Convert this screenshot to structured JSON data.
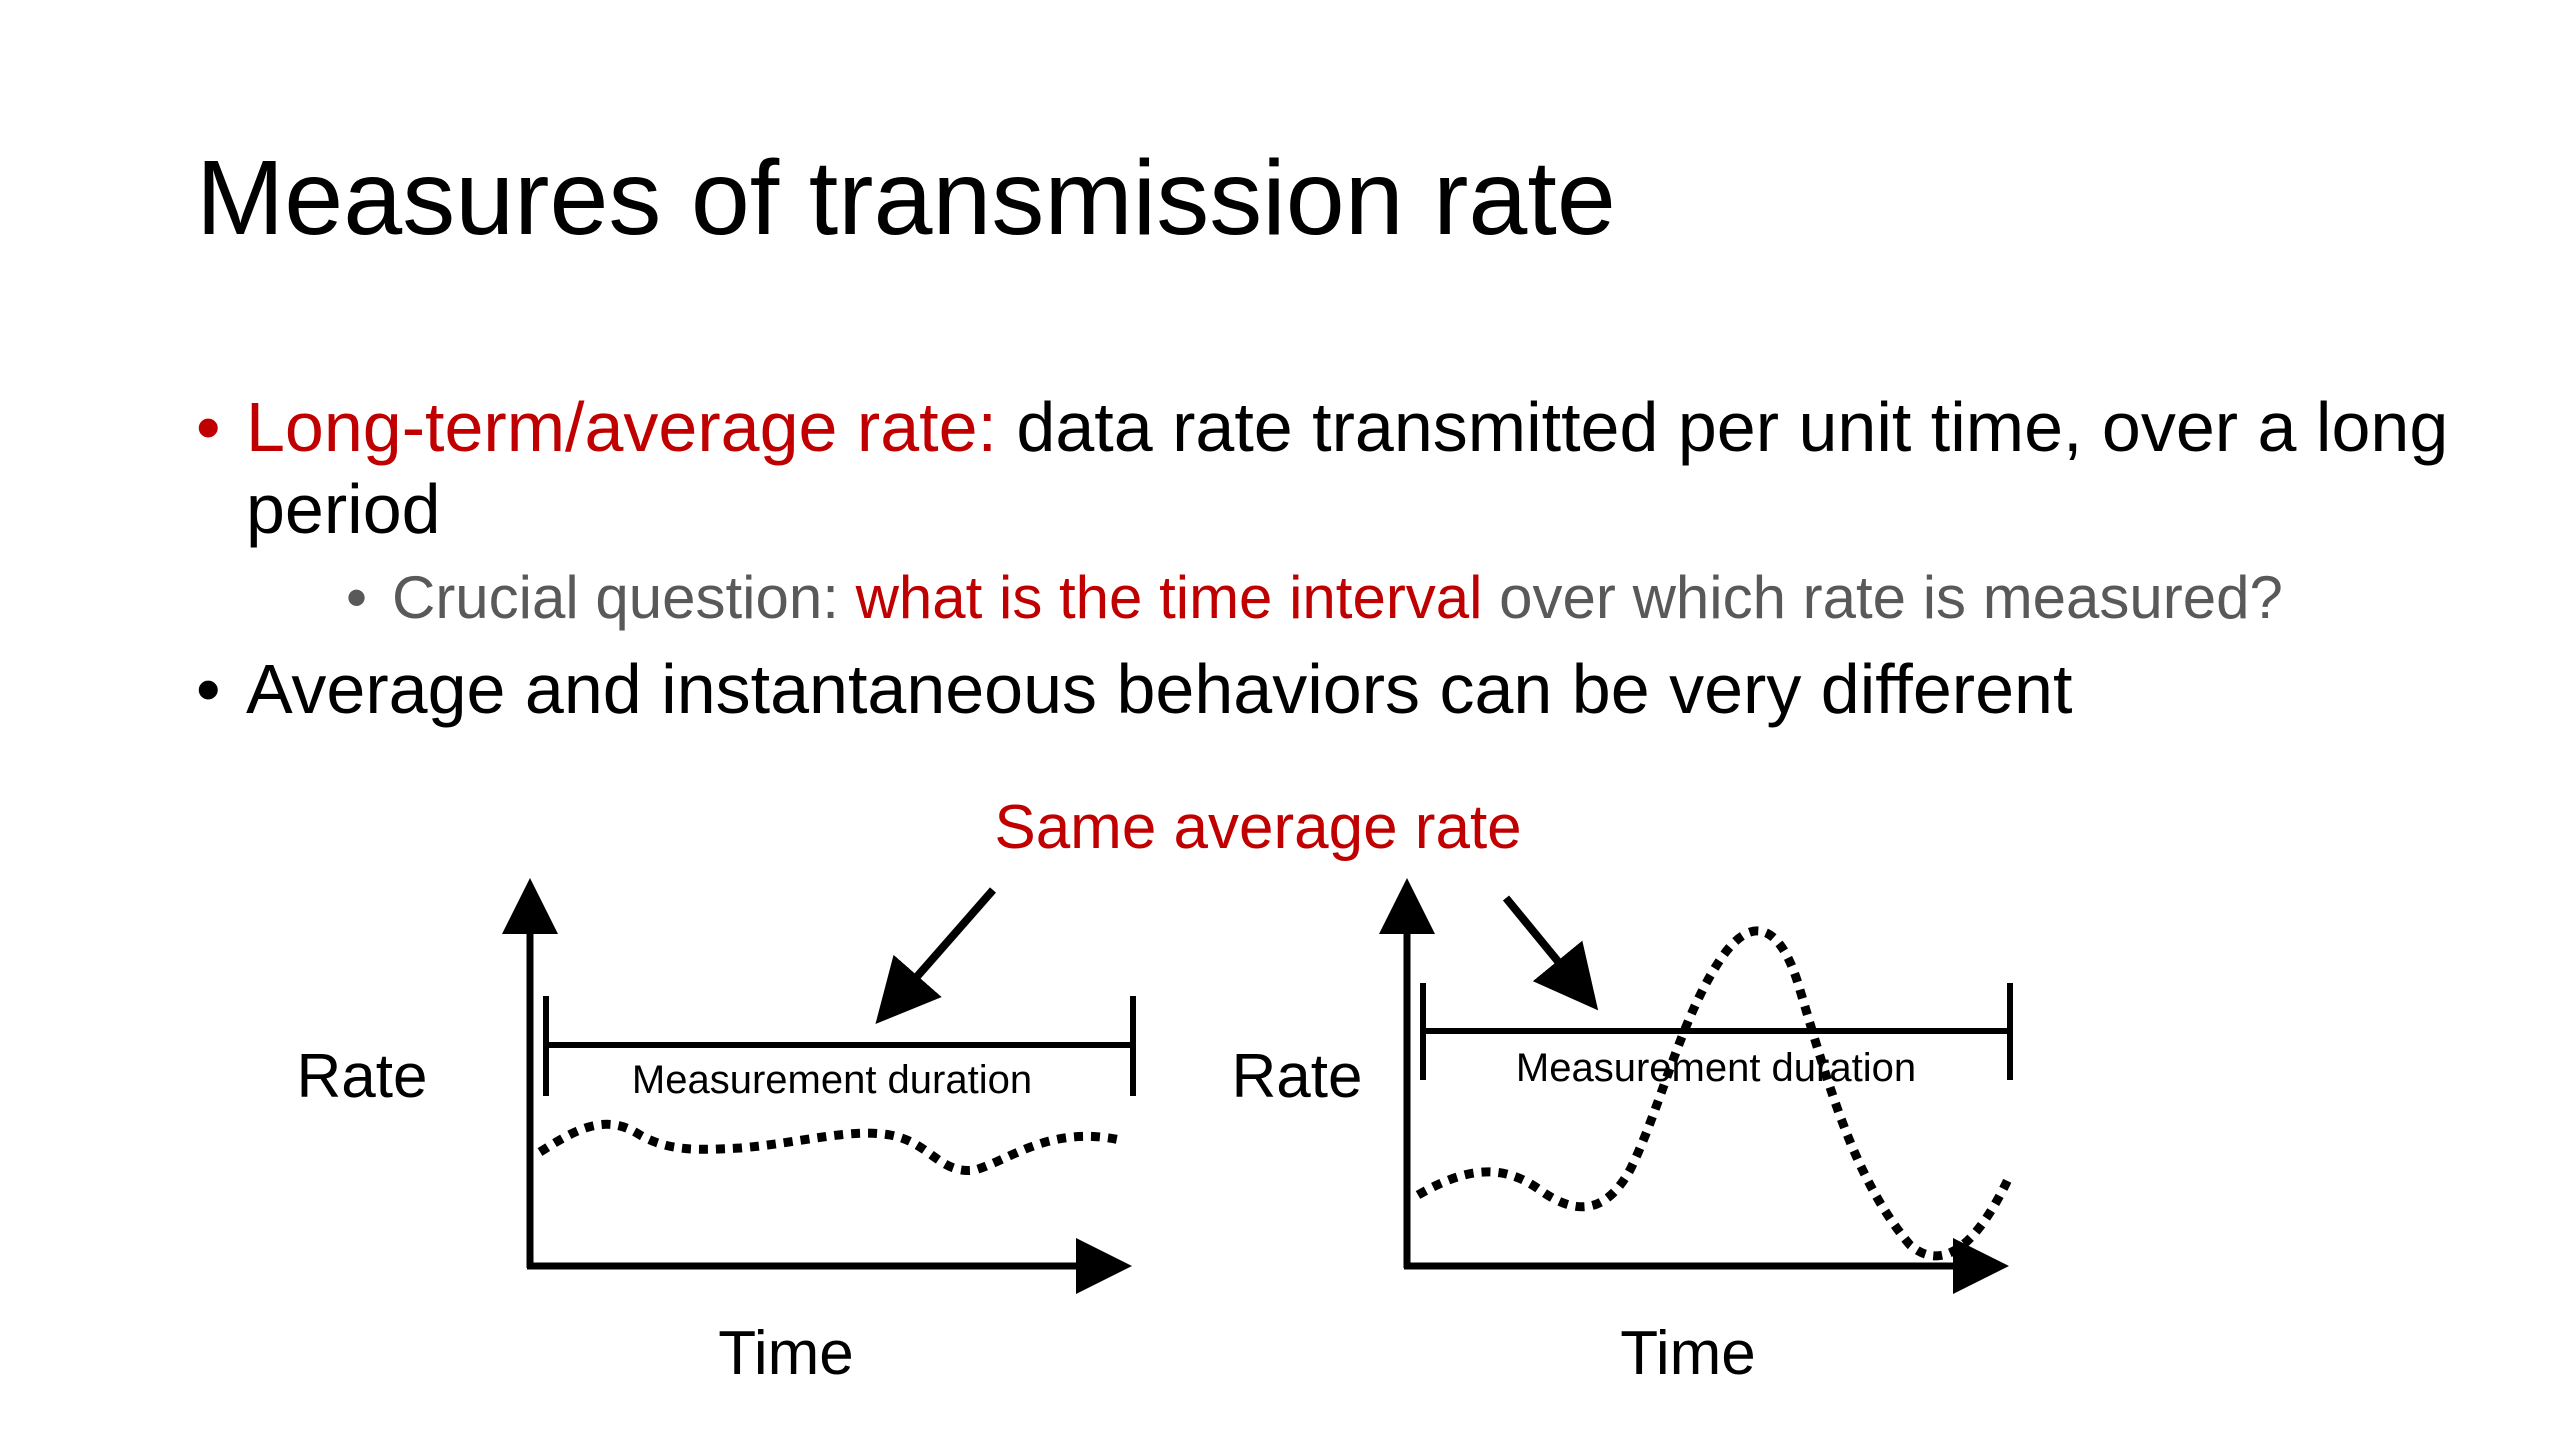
{
  "slide": {
    "title": "Measures of transmission rate",
    "bullets": [
      {
        "bullet_glyph": "•",
        "highlight": "Long-term/average rate:",
        "text": " data rate transmitted per unit time, over a long period",
        "sub": {
          "bullet_glyph": "•",
          "prefix": "Crucial question: ",
          "highlight": "what is the time interval",
          "suffix": " over which rate is measured?"
        }
      },
      {
        "bullet_glyph": "•",
        "text": "Average and instantaneous behaviors can be very different"
      }
    ],
    "diagram": {
      "annotation": "Same average rate",
      "left_plot": {
        "y_label": "Rate",
        "x_label": "Time",
        "interval_label": "Measurement duration"
      },
      "right_plot": {
        "y_label": "Rate",
        "x_label": "Time",
        "interval_label": "Measurement duration"
      }
    },
    "colors": {
      "accent": "#c00000",
      "text": "#000000",
      "subtext": "#595959"
    }
  }
}
